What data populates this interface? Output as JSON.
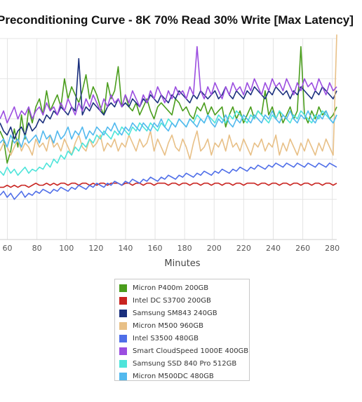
{
  "chart_data": {
    "type": "line",
    "title": "Preconditioning Curve - 8K 70% Read 30% Write [Max Latency]",
    "xlabel": "Minutes",
    "ylabel": "",
    "x_ticks": [
      60,
      80,
      100,
      120,
      140,
      160,
      180,
      200,
      220,
      240,
      260,
      280
    ],
    "xlim": [
      55,
      283
    ],
    "ylim": [
      0,
      1
    ],
    "grid": true,
    "legend_position": "bottom-center",
    "series": [
      {
        "name": "Micron P400m 200GB",
        "color": "#4a9d1c",
        "values": [
          0.54,
          0.5,
          0.38,
          0.44,
          0.55,
          0.46,
          0.62,
          0.5,
          0.65,
          0.58,
          0.66,
          0.7,
          0.62,
          0.74,
          0.64,
          0.68,
          0.72,
          0.66,
          0.8,
          0.7,
          0.76,
          0.72,
          0.68,
          0.74,
          0.82,
          0.7,
          0.76,
          0.72,
          0.66,
          0.62,
          0.78,
          0.7,
          0.74,
          0.86,
          0.66,
          0.72,
          0.66,
          0.64,
          0.68,
          0.62,
          0.66,
          0.7,
          0.64,
          0.6,
          0.66,
          0.68,
          0.66,
          0.64,
          0.62,
          0.7,
          0.68,
          0.64,
          0.66,
          0.62,
          0.6,
          0.66,
          0.64,
          0.68,
          0.62,
          0.66,
          0.62,
          0.64,
          0.66,
          0.56,
          0.62,
          0.66,
          0.6,
          0.64,
          0.58,
          0.62,
          0.66,
          0.6,
          0.64,
          0.62,
          0.74,
          0.62,
          0.66,
          0.6,
          0.64,
          0.58,
          0.62,
          0.66,
          0.6,
          0.64,
          0.96,
          0.62,
          0.58,
          0.64,
          0.6,
          0.66,
          0.62,
          0.64,
          0.6,
          0.62,
          0.66
        ]
      },
      {
        "name": "Intel DC S3700 200GB",
        "color": "#c92420",
        "values": [
          0.26,
          0.26,
          0.27,
          0.26,
          0.27,
          0.26,
          0.27,
          0.27,
          0.26,
          0.27,
          0.28,
          0.27,
          0.27,
          0.28,
          0.27,
          0.28,
          0.27,
          0.28,
          0.28,
          0.27,
          0.28,
          0.28,
          0.27,
          0.28,
          0.28,
          0.27,
          0.28,
          0.27,
          0.28,
          0.28,
          0.27,
          0.28,
          0.28,
          0.28,
          0.27,
          0.28,
          0.28,
          0.27,
          0.28,
          0.28,
          0.27,
          0.28,
          0.28,
          0.27,
          0.28,
          0.28,
          0.28,
          0.27,
          0.28,
          0.28,
          0.27,
          0.28,
          0.28,
          0.27,
          0.28,
          0.28,
          0.27,
          0.28,
          0.28,
          0.27,
          0.28,
          0.28,
          0.27,
          0.28,
          0.28,
          0.27,
          0.28,
          0.28,
          0.27,
          0.28,
          0.28,
          0.28,
          0.27,
          0.28,
          0.28,
          0.27,
          0.28,
          0.28,
          0.27,
          0.28,
          0.28,
          0.27,
          0.28,
          0.28,
          0.27,
          0.28,
          0.28,
          0.27,
          0.28,
          0.28,
          0.27,
          0.28,
          0.28,
          0.27,
          0.28
        ]
      },
      {
        "name": "Samsung SM843 240GB",
        "color": "#1a2f7d",
        "values": [
          0.58,
          0.54,
          0.52,
          0.56,
          0.5,
          0.54,
          0.56,
          0.52,
          0.58,
          0.54,
          0.56,
          0.6,
          0.58,
          0.62,
          0.6,
          0.64,
          0.62,
          0.66,
          0.64,
          0.62,
          0.66,
          0.64,
          0.9,
          0.62,
          0.66,
          0.64,
          0.68,
          0.66,
          0.64,
          0.62,
          0.66,
          0.68,
          0.66,
          0.7,
          0.66,
          0.68,
          0.66,
          0.7,
          0.68,
          0.66,
          0.7,
          0.68,
          0.72,
          0.7,
          0.68,
          0.72,
          0.7,
          0.68,
          0.72,
          0.7,
          0.74,
          0.72,
          0.7,
          0.68,
          0.72,
          0.7,
          0.74,
          0.72,
          0.7,
          0.72,
          0.74,
          0.7,
          0.72,
          0.76,
          0.72,
          0.7,
          0.74,
          0.72,
          0.7,
          0.74,
          0.72,
          0.76,
          0.74,
          0.72,
          0.7,
          0.74,
          0.72,
          0.76,
          0.74,
          0.72,
          0.74,
          0.7,
          0.74,
          0.72,
          0.76,
          0.74,
          0.72,
          0.7,
          0.74,
          0.72,
          0.76,
          0.74,
          0.72,
          0.7,
          0.74
        ]
      },
      {
        "name": "Micron M500 960GB",
        "color": "#e8c087",
        "values": [
          0.44,
          0.48,
          0.46,
          0.42,
          0.46,
          0.5,
          0.44,
          0.48,
          0.46,
          0.42,
          0.5,
          0.46,
          0.48,
          0.44,
          0.52,
          0.46,
          0.48,
          0.44,
          0.5,
          0.46,
          0.42,
          0.48,
          0.52,
          0.46,
          0.44,
          0.5,
          0.46,
          0.48,
          0.52,
          0.44,
          0.48,
          0.46,
          0.5,
          0.44,
          0.48,
          0.46,
          0.52,
          0.48,
          0.44,
          0.5,
          0.46,
          0.48,
          0.54,
          0.44,
          0.5,
          0.46,
          0.42,
          0.48,
          0.52,
          0.46,
          0.44,
          0.5,
          0.46,
          0.4,
          0.48,
          0.54,
          0.44,
          0.46,
          0.5,
          0.42,
          0.48,
          0.46,
          0.5,
          0.44,
          0.52,
          0.46,
          0.48,
          0.44,
          0.5,
          0.46,
          0.42,
          0.48,
          0.46,
          0.5,
          0.44,
          0.48,
          0.46,
          0.52,
          0.42,
          0.48,
          0.44,
          0.5,
          0.46,
          0.42,
          0.48,
          0.44,
          0.5,
          0.46,
          0.42,
          0.48,
          0.44,
          0.5,
          0.46,
          0.42,
          1.02
        ]
      },
      {
        "name": "Intel S3500 480GB",
        "color": "#4f6ee8",
        "values": [
          0.22,
          0.24,
          0.21,
          0.23,
          0.2,
          0.22,
          0.24,
          0.21,
          0.23,
          0.22,
          0.24,
          0.23,
          0.25,
          0.24,
          0.23,
          0.25,
          0.24,
          0.26,
          0.25,
          0.24,
          0.26,
          0.25,
          0.27,
          0.26,
          0.25,
          0.27,
          0.26,
          0.28,
          0.27,
          0.26,
          0.28,
          0.27,
          0.29,
          0.28,
          0.27,
          0.29,
          0.28,
          0.3,
          0.29,
          0.28,
          0.3,
          0.29,
          0.31,
          0.3,
          0.29,
          0.31,
          0.3,
          0.32,
          0.31,
          0.3,
          0.32,
          0.31,
          0.33,
          0.32,
          0.31,
          0.33,
          0.32,
          0.34,
          0.33,
          0.32,
          0.34,
          0.33,
          0.35,
          0.34,
          0.33,
          0.35,
          0.34,
          0.36,
          0.35,
          0.34,
          0.36,
          0.35,
          0.37,
          0.36,
          0.35,
          0.37,
          0.36,
          0.38,
          0.37,
          0.36,
          0.38,
          0.37,
          0.36,
          0.38,
          0.37,
          0.36,
          0.38,
          0.37,
          0.36,
          0.38,
          0.37,
          0.36,
          0.38,
          0.37,
          0.36
        ]
      },
      {
        "name": "Smart CloudSpeed 1000E 400GB",
        "color": "#9b4de0",
        "values": [
          0.6,
          0.64,
          0.58,
          0.62,
          0.66,
          0.6,
          0.64,
          0.62,
          0.66,
          0.6,
          0.64,
          0.66,
          0.62,
          0.68,
          0.64,
          0.66,
          0.62,
          0.68,
          0.64,
          0.7,
          0.66,
          0.62,
          0.68,
          0.64,
          0.7,
          0.66,
          0.72,
          0.68,
          0.64,
          0.7,
          0.66,
          0.72,
          0.68,
          0.7,
          0.66,
          0.72,
          0.68,
          0.74,
          0.7,
          0.66,
          0.72,
          0.68,
          0.74,
          0.7,
          0.76,
          0.72,
          0.68,
          0.74,
          0.7,
          0.76,
          0.72,
          0.74,
          0.7,
          0.76,
          0.72,
          0.96,
          0.74,
          0.7,
          0.76,
          0.72,
          0.78,
          0.74,
          0.7,
          0.76,
          0.72,
          0.78,
          0.74,
          0.76,
          0.72,
          0.78,
          0.74,
          0.8,
          0.76,
          0.72,
          0.78,
          0.74,
          0.8,
          0.76,
          0.78,
          0.74,
          0.8,
          0.76,
          0.72,
          0.78,
          0.74,
          0.8,
          0.76,
          0.78,
          0.74,
          0.8,
          0.76,
          0.72,
          0.78,
          0.74,
          0.76
        ]
      },
      {
        "name": "Samsung SSD 840 Pro 512GB",
        "color": "#4ee4da",
        "values": [
          0.34,
          0.32,
          0.36,
          0.33,
          0.35,
          0.32,
          0.34,
          0.36,
          0.33,
          0.35,
          0.34,
          0.36,
          0.35,
          0.38,
          0.36,
          0.4,
          0.38,
          0.42,
          0.4,
          0.44,
          0.42,
          0.46,
          0.44,
          0.48,
          0.46,
          0.5,
          0.48,
          0.52,
          0.5,
          0.54,
          0.52,
          0.5,
          0.54,
          0.52,
          0.56,
          0.54,
          0.52,
          0.56,
          0.54,
          0.58,
          0.56,
          0.54,
          0.58,
          0.56,
          0.54,
          0.58,
          0.56,
          0.6,
          0.58,
          0.56,
          0.6,
          0.58,
          0.56,
          0.6,
          0.58,
          0.62,
          0.6,
          0.58,
          0.62,
          0.6,
          0.58,
          0.62,
          0.6,
          0.58,
          0.62,
          0.6,
          0.64,
          0.62,
          0.6,
          0.58,
          0.62,
          0.6,
          0.64,
          0.62,
          0.6,
          0.58,
          0.62,
          0.6,
          0.64,
          0.62,
          0.6,
          0.58,
          0.62,
          0.6,
          0.64,
          0.62,
          0.6,
          0.58,
          0.62,
          0.6,
          0.64,
          0.62,
          0.6,
          0.58,
          0.62
        ]
      },
      {
        "name": "Micron M500DC 480GB",
        "color": "#52b9ee",
        "values": [
          0.48,
          0.5,
          0.46,
          0.52,
          0.48,
          0.5,
          0.46,
          0.52,
          0.48,
          0.5,
          0.52,
          0.48,
          0.54,
          0.5,
          0.52,
          0.48,
          0.54,
          0.5,
          0.52,
          0.56,
          0.5,
          0.54,
          0.52,
          0.56,
          0.5,
          0.54,
          0.52,
          0.56,
          0.54,
          0.52,
          0.56,
          0.54,
          0.58,
          0.54,
          0.52,
          0.56,
          0.54,
          0.58,
          0.56,
          0.54,
          0.58,
          0.56,
          0.54,
          0.58,
          0.56,
          0.6,
          0.56,
          0.54,
          0.58,
          0.56,
          0.6,
          0.58,
          0.56,
          0.6,
          0.58,
          0.56,
          0.6,
          0.58,
          0.62,
          0.58,
          0.56,
          0.6,
          0.58,
          0.62,
          0.58,
          0.56,
          0.6,
          0.58,
          0.62,
          0.6,
          0.58,
          0.62,
          0.6,
          0.58,
          0.62,
          0.6,
          0.64,
          0.6,
          0.58,
          0.62,
          0.6,
          0.64,
          0.6,
          0.58,
          0.62,
          0.6,
          0.64,
          0.6,
          0.58,
          0.62,
          0.6,
          0.64,
          0.6,
          0.58,
          0.62
        ]
      }
    ]
  }
}
